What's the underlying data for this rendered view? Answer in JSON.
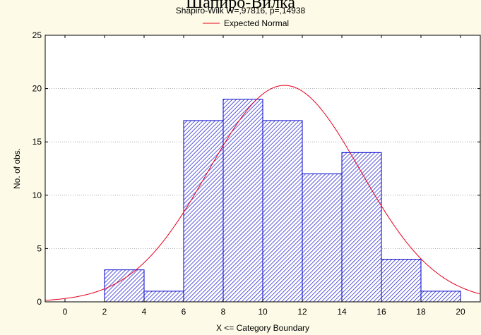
{
  "chart_data": {
    "type": "bar",
    "title": "Шапиро-Вилка",
    "subtitle": "Shapiro-Wilk W=,97816, p=,14938",
    "xlabel": "X <= Category Boundary",
    "ylabel": "No. of obs.",
    "xlim": [
      -1,
      21
    ],
    "ylim": [
      0,
      25
    ],
    "xticks": [
      0,
      2,
      4,
      6,
      8,
      10,
      12,
      14,
      16,
      18,
      20
    ],
    "yticks": [
      0,
      5,
      10,
      15,
      20,
      25
    ],
    "grid": true,
    "legend": {
      "position": "top-center",
      "entries": [
        "Expected Normal"
      ]
    },
    "bins": [
      {
        "from": 2,
        "to": 4,
        "count": 3
      },
      {
        "from": 4,
        "to": 6,
        "count": 1
      },
      {
        "from": 6,
        "to": 8,
        "count": 17
      },
      {
        "from": 8,
        "to": 10,
        "count": 19
      },
      {
        "from": 10,
        "to": 12,
        "count": 17
      },
      {
        "from": 12,
        "to": 14,
        "count": 12
      },
      {
        "from": 14,
        "to": 16,
        "count": 14
      },
      {
        "from": 16,
        "to": 18,
        "count": 4
      },
      {
        "from": 18,
        "to": 20,
        "count": 1
      }
    ],
    "series": [
      {
        "name": "Expected Normal",
        "type": "normal-curve",
        "mean": 11.1,
        "sd": 3.84,
        "peak": 20.3
      }
    ],
    "colors": {
      "background": "#fdfbe7",
      "plot_background": "#ffffff",
      "bar_stroke": "#0000cc",
      "bar_hatch": "#0000cc",
      "curve": "#e8001c",
      "grid": "#999999"
    }
  }
}
